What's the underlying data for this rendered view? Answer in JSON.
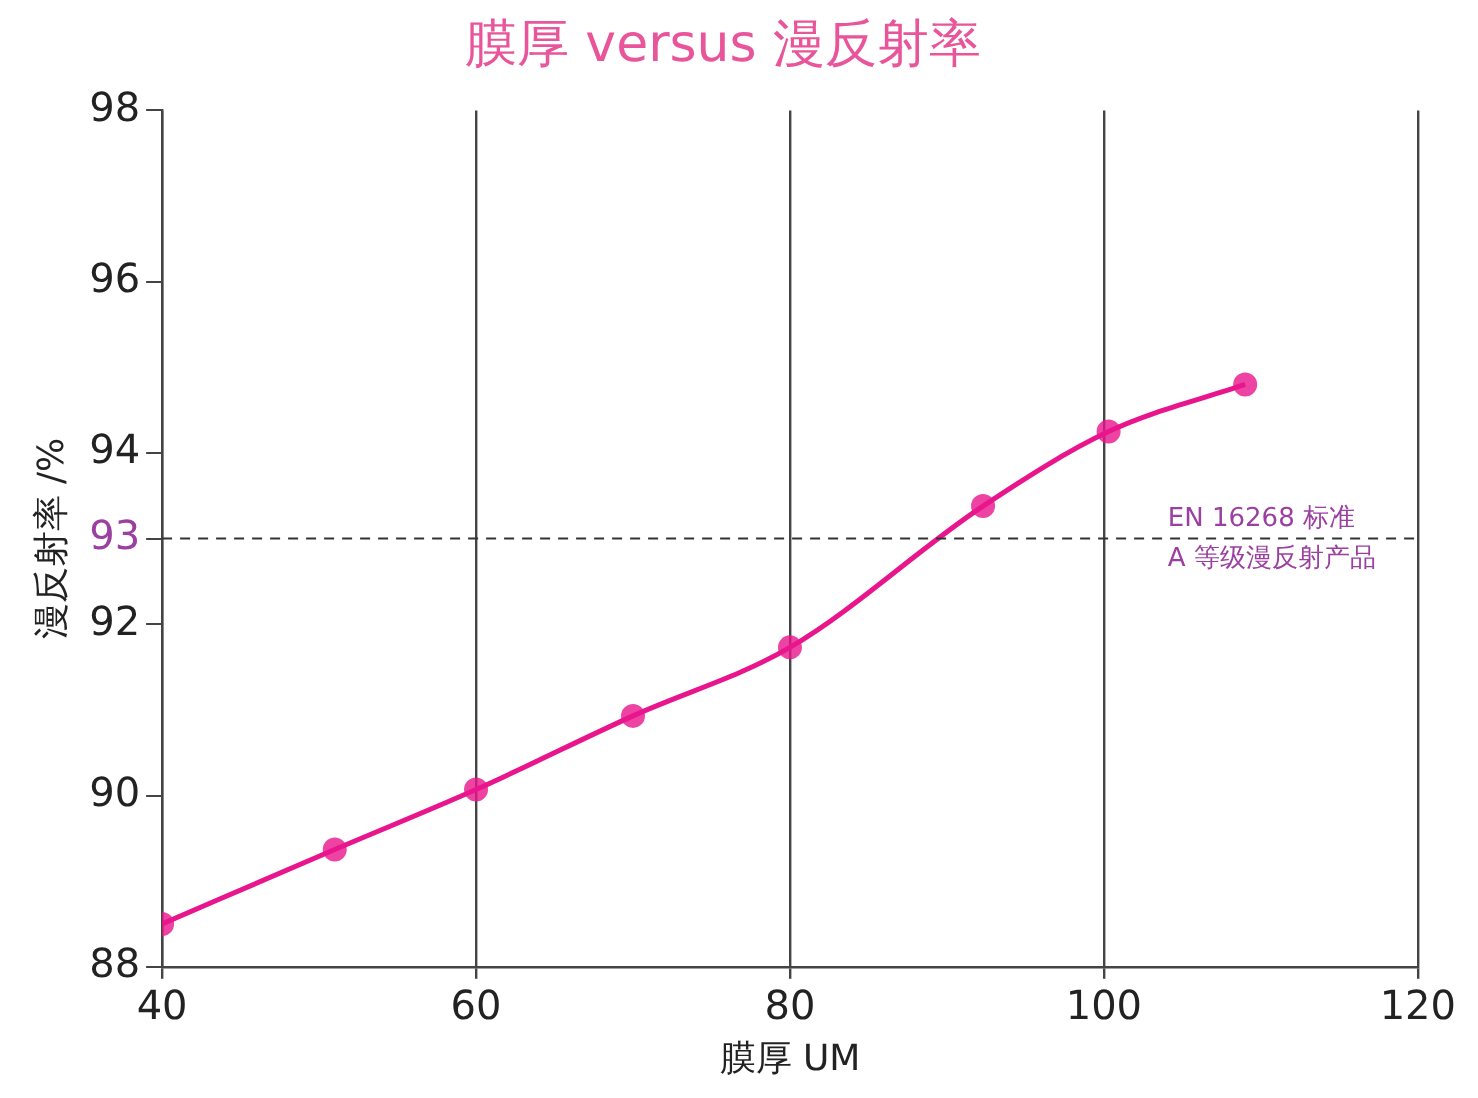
{
  "chart_data": {
    "type": "line",
    "title": "膜厚 versus 漫反射率",
    "xlabel": "膜厚 UM",
    "ylabel": "漫反射率 /%",
    "x": [
      40,
      51,
      60,
      70,
      80,
      92.3,
      100.3,
      109
    ],
    "series": [
      {
        "color": "#e8158c",
        "values": [
          88.5,
          89.37,
          90.07,
          90.93,
          91.73,
          93.38,
          94.25,
          94.8
        ]
      }
    ],
    "xlim": [
      40,
      120
    ],
    "xticks": [
      40,
      60,
      80,
      100,
      120
    ],
    "ylim": [
      88,
      98
    ],
    "yticks": [
      88,
      90,
      92,
      93,
      94,
      96,
      98
    ],
    "grid": "x",
    "marker": "circle",
    "line_style": "solid",
    "legend": false,
    "ref_lines": [
      {
        "axis": "y",
        "value": 93,
        "label": "EN 16268 标准\nA 等级漫反射产品",
        "line_style": "dashed"
      }
    ]
  }
}
